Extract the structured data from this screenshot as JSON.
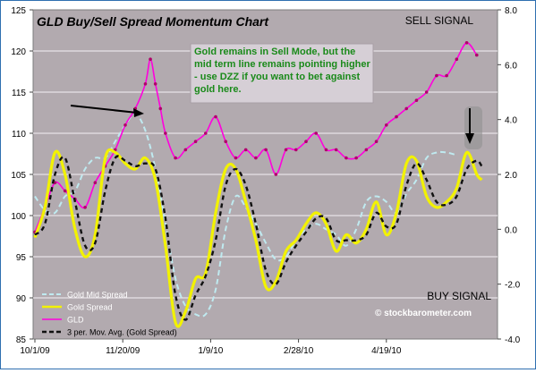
{
  "chart_data": {
    "type": "line",
    "title": "GLD Buy/Sell Spread Momentum Chart",
    "annotation": "Gold remains in Sell Mode, but the mid term line remains pointing higher - use DZZ if you want to bet against gold here.",
    "sell_signal_label": "SELL SIGNAL",
    "buy_signal_label": "BUY SIGNAL",
    "watermark": "© stockbarometer.com",
    "x_tick_labels": [
      "10/1/09",
      "11/20/09",
      "1/9/10",
      "2/28/10",
      "4/19/10"
    ],
    "x_tick_index": [
      0,
      35,
      70,
      105,
      140
    ],
    "x_count": 181,
    "y_left": {
      "ylim": [
        85,
        125
      ],
      "ticks": [
        85,
        90,
        95,
        100,
        105,
        110,
        115,
        120,
        125
      ]
    },
    "y_right": {
      "ylim": [
        -4.0,
        8.0
      ],
      "ticks": [
        -4.0,
        -2.0,
        0.0,
        2.0,
        4.0,
        6.0,
        8.0
      ],
      "tick_labels": [
        "-4.0",
        "-2.0",
        "0.0",
        "2.0",
        "4.0",
        "6.0",
        "8.0"
      ]
    },
    "grid": true,
    "legend_position": "bottom-left",
    "series": [
      {
        "name": "Gold Mid Spread",
        "axis": "right",
        "color": "#bfeaf0",
        "dash": true,
        "knots": [
          [
            0,
            1.2
          ],
          [
            4,
            0.7
          ],
          [
            8,
            0.6
          ],
          [
            12,
            1.2
          ],
          [
            16,
            1.4
          ],
          [
            20,
            2.2
          ],
          [
            24,
            2.6
          ],
          [
            28,
            2.6
          ],
          [
            32,
            3.2
          ],
          [
            36,
            3.8
          ],
          [
            40,
            4.2
          ],
          [
            44,
            3.6
          ],
          [
            48,
            2.2
          ],
          [
            52,
            0.2
          ],
          [
            56,
            -1.8
          ],
          [
            60,
            -2.8
          ],
          [
            64,
            -3.1
          ],
          [
            68,
            -3.1
          ],
          [
            72,
            -2.2
          ],
          [
            76,
            0.0
          ],
          [
            80,
            1.2
          ],
          [
            84,
            0.8
          ],
          [
            88,
            0.2
          ],
          [
            92,
            -0.5
          ],
          [
            96,
            -1.1
          ],
          [
            100,
            -1.0
          ],
          [
            104,
            -0.4
          ],
          [
            108,
            0.0
          ],
          [
            112,
            0.2
          ],
          [
            116,
            0.0
          ],
          [
            120,
            -0.2
          ],
          [
            124,
            -0.6
          ],
          [
            128,
            0.0
          ],
          [
            132,
            1.0
          ],
          [
            136,
            1.2
          ],
          [
            140,
            1.0
          ],
          [
            144,
            0.6
          ],
          [
            148,
            1.3
          ],
          [
            152,
            1.8
          ],
          [
            156,
            2.6
          ],
          [
            160,
            2.8
          ],
          [
            164,
            2.8
          ],
          [
            168,
            2.7
          ]
        ]
      },
      {
        "name": "Gold  Spread",
        "axis": "right",
        "color": "#f2f200",
        "dash": false,
        "knots": [
          [
            0,
            -0.3
          ],
          [
            4,
            0.8
          ],
          [
            8,
            2.8
          ],
          [
            12,
            2.0
          ],
          [
            16,
            0.0
          ],
          [
            20,
            -1.0
          ],
          [
            24,
            -0.2
          ],
          [
            28,
            2.6
          ],
          [
            32,
            2.8
          ],
          [
            36,
            2.4
          ],
          [
            40,
            2.2
          ],
          [
            44,
            2.6
          ],
          [
            48,
            1.8
          ],
          [
            52,
            -0.6
          ],
          [
            56,
            -3.4
          ],
          [
            60,
            -3.0
          ],
          [
            64,
            -1.8
          ],
          [
            68,
            -1.6
          ],
          [
            72,
            0.6
          ],
          [
            76,
            2.2
          ],
          [
            80,
            2.2
          ],
          [
            84,
            1.0
          ],
          [
            88,
            -0.4
          ],
          [
            92,
            -2.1
          ],
          [
            96,
            -1.9
          ],
          [
            100,
            -0.8
          ],
          [
            104,
            -0.4
          ],
          [
            108,
            0.2
          ],
          [
            112,
            0.6
          ],
          [
            116,
            0.2
          ],
          [
            120,
            -0.8
          ],
          [
            124,
            -0.2
          ],
          [
            128,
            -0.5
          ],
          [
            132,
            0.0
          ],
          [
            136,
            1.0
          ],
          [
            140,
            -0.2
          ],
          [
            144,
            0.6
          ],
          [
            148,
            2.4
          ],
          [
            152,
            2.5
          ],
          [
            156,
            1.2
          ],
          [
            160,
            0.8
          ],
          [
            164,
            1.0
          ],
          [
            168,
            1.5
          ],
          [
            172,
            2.8
          ],
          [
            176,
            2.0
          ],
          [
            178,
            1.8
          ]
        ]
      },
      {
        "name": "GLD",
        "axis": "left",
        "color": "#ff00dd",
        "dash": false,
        "knots": [
          [
            0,
            98
          ],
          [
            4,
            101
          ],
          [
            8,
            104
          ],
          [
            12,
            103
          ],
          [
            16,
            102
          ],
          [
            20,
            101
          ],
          [
            24,
            104
          ],
          [
            28,
            106
          ],
          [
            32,
            108
          ],
          [
            36,
            111
          ],
          [
            40,
            113
          ],
          [
            44,
            116
          ],
          [
            46,
            119
          ],
          [
            48,
            116
          ],
          [
            50,
            113
          ],
          [
            52,
            110
          ],
          [
            56,
            107
          ],
          [
            60,
            108
          ],
          [
            64,
            109
          ],
          [
            68,
            110
          ],
          [
            72,
            112
          ],
          [
            76,
            109
          ],
          [
            80,
            107
          ],
          [
            84,
            108
          ],
          [
            88,
            107
          ],
          [
            92,
            108
          ],
          [
            96,
            105
          ],
          [
            100,
            108
          ],
          [
            104,
            108
          ],
          [
            108,
            109
          ],
          [
            112,
            110
          ],
          [
            116,
            108
          ],
          [
            120,
            108
          ],
          [
            124,
            107
          ],
          [
            128,
            107
          ],
          [
            132,
            108
          ],
          [
            136,
            109
          ],
          [
            140,
            111
          ],
          [
            144,
            112
          ],
          [
            148,
            113
          ],
          [
            152,
            114
          ],
          [
            156,
            115
          ],
          [
            160,
            117
          ],
          [
            164,
            117
          ],
          [
            168,
            119
          ],
          [
            172,
            121
          ],
          [
            176,
            119.5
          ]
        ]
      },
      {
        "name": "3 per. Mov. Avg. (Gold  Spread)",
        "axis": "right",
        "color": "#111111",
        "dash": true,
        "knots": [
          [
            0,
            -0.2
          ],
          [
            4,
            0.2
          ],
          [
            8,
            2.0
          ],
          [
            12,
            2.6
          ],
          [
            16,
            1.0
          ],
          [
            20,
            -0.6
          ],
          [
            24,
            -0.5
          ],
          [
            28,
            1.4
          ],
          [
            32,
            2.6
          ],
          [
            36,
            2.5
          ],
          [
            40,
            2.3
          ],
          [
            44,
            2.4
          ],
          [
            48,
            2.2
          ],
          [
            52,
            0.4
          ],
          [
            56,
            -2.4
          ],
          [
            60,
            -3.3
          ],
          [
            64,
            -2.4
          ],
          [
            68,
            -1.7
          ],
          [
            72,
            -0.4
          ],
          [
            76,
            1.6
          ],
          [
            80,
            2.2
          ],
          [
            84,
            1.6
          ],
          [
            88,
            0.2
          ],
          [
            92,
            -1.5
          ],
          [
            96,
            -2.0
          ],
          [
            100,
            -1.2
          ],
          [
            104,
            -0.6
          ],
          [
            108,
            -0.1
          ],
          [
            112,
            0.4
          ],
          [
            116,
            0.4
          ],
          [
            120,
            -0.4
          ],
          [
            124,
            -0.4
          ],
          [
            128,
            -0.4
          ],
          [
            132,
            -0.2
          ],
          [
            136,
            0.6
          ],
          [
            140,
            0.1
          ],
          [
            144,
            0.2
          ],
          [
            148,
            1.6
          ],
          [
            152,
            2.4
          ],
          [
            156,
            1.8
          ],
          [
            160,
            1.0
          ],
          [
            164,
            0.9
          ],
          [
            168,
            1.2
          ],
          [
            172,
            2.2
          ],
          [
            176,
            2.5
          ],
          [
            178,
            2.3
          ]
        ]
      }
    ]
  }
}
